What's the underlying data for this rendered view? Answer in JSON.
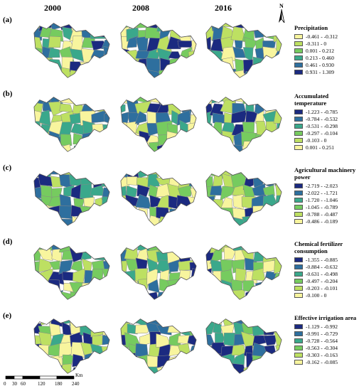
{
  "years": [
    "2000",
    "2008",
    "2016"
  ],
  "north_label": "N",
  "colors": {
    "yellow": "#f8f59e",
    "lightgreen": "#bde062",
    "green": "#76cb5f",
    "teal": "#3aa88b",
    "blue": "#2e6f9e",
    "navy": "#1b2a80"
  },
  "rows": [
    {
      "letter": "(a)",
      "title": "Precipitation",
      "order": "asc",
      "classes": [
        "-0.461 - -0.312",
        "-0.311 - 0",
        "0.001 - 0.212",
        "0.213 - 0.460",
        "0.461 - 0.930",
        "0.931 - 1.309"
      ]
    },
    {
      "letter": "(b)",
      "title": "Accumulated temperature",
      "order": "desc",
      "classes": [
        "-1.223 - -0.785",
        "-0.784 - -0.532",
        "-0.531 - -0.298",
        "-0.297 - -0.104",
        "-0.103 - 0",
        "0.001 - 0.251"
      ]
    },
    {
      "letter": "(c)",
      "title": "Agricultural machinery power",
      "order": "desc",
      "classes": [
        "-2.719 - -2.023",
        "-2.022 - -1.721",
        "-1.720 - -1.046",
        "-1.045 - -0.789",
        "-0.788 - -0.487",
        "-0.486 - -0.189"
      ]
    },
    {
      "letter": "(d)",
      "title": "Chemical fertilizer consumption",
      "order": "desc",
      "classes": [
        "-1.355 - -0.885",
        "-0.884 - -0.632",
        "-0.631 - -0.498",
        "-0.497 - -0.204",
        "-0.203 - -0.101",
        "-0.100 - 0"
      ]
    },
    {
      "letter": "(e)",
      "title": "Effective irrigation area",
      "order": "desc",
      "classes": [
        "-1.129 - -0.992",
        "-0.991 - -0.729",
        "-0.728 - -0.564",
        "-0.563 - -0.304",
        "-0.303 - -0.163",
        "-0.162 - -0.085"
      ]
    }
  ],
  "scalebar": {
    "ticks": [
      "0",
      "30",
      "60",
      "120",
      "180",
      "240"
    ],
    "tick_values": [
      0,
      30,
      60,
      120,
      180,
      240
    ],
    "unit": "Km"
  }
}
